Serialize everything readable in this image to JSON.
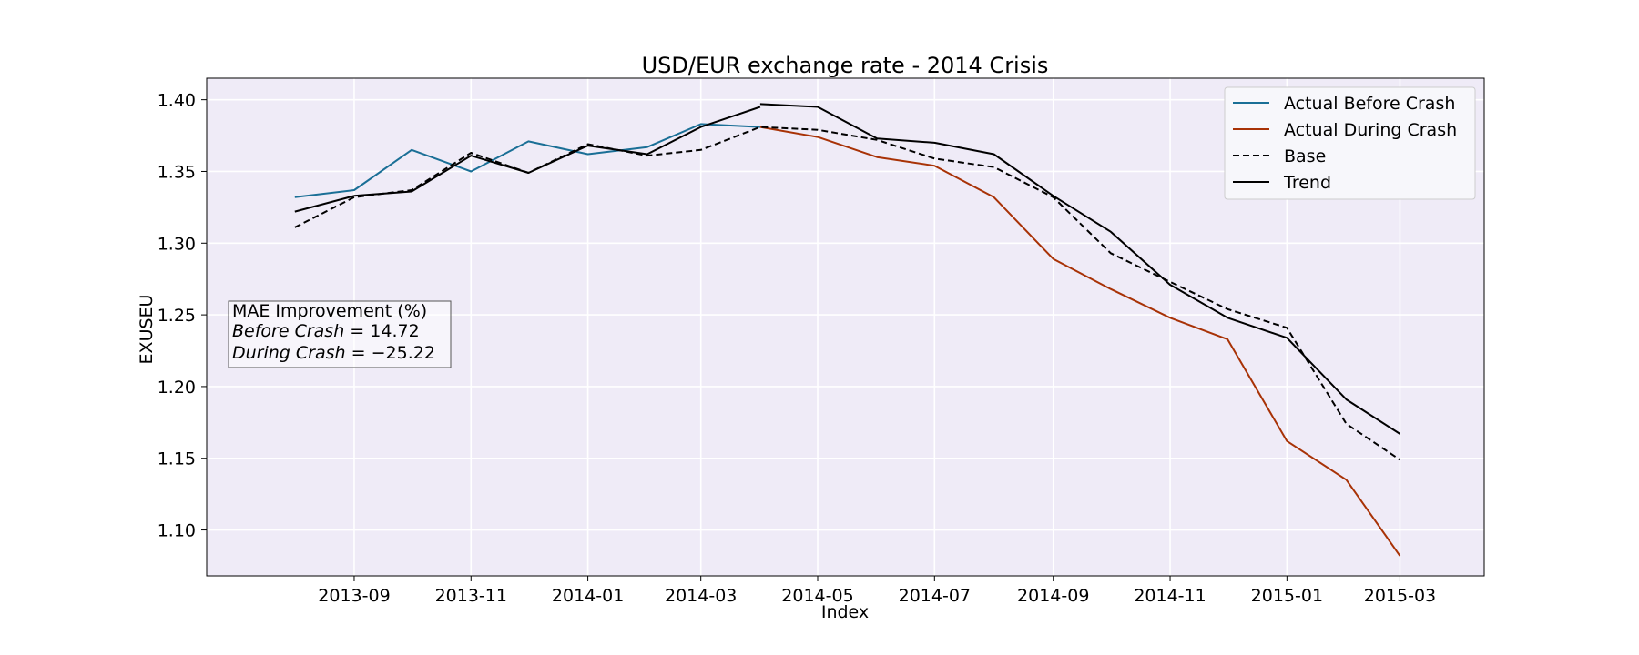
{
  "chart_data": {
    "type": "line",
    "title": "USD/EUR exchange rate - 2014 Crisis",
    "xlabel": "Index",
    "ylabel": "EXUSEU",
    "xlim": [
      "2013-06-16",
      "2015-04-14"
    ],
    "ylim": [
      1.068,
      1.415
    ],
    "x_ticks": [
      "2013-09",
      "2013-11",
      "2014-01",
      "2014-03",
      "2014-05",
      "2014-07",
      "2014-09",
      "2014-11",
      "2015-01",
      "2015-03"
    ],
    "y_ticks": [
      "1.10",
      "1.15",
      "1.20",
      "1.25",
      "1.30",
      "1.35",
      "1.40"
    ],
    "grid": true,
    "legend_position": "top-right",
    "series": [
      {
        "name": "Actual Before Crash",
        "color": "#1a6f96",
        "style": "solid",
        "x": [
          "2013-08-01",
          "2013-09-01",
          "2013-10-01",
          "2013-11-01",
          "2013-12-01",
          "2014-01-01",
          "2014-02-01",
          "2014-03-01",
          "2014-04-01"
        ],
        "values": [
          1.332,
          1.337,
          1.365,
          1.35,
          1.371,
          1.362,
          1.367,
          1.383,
          1.381
        ]
      },
      {
        "name": "Actual During Crash",
        "color": "#a83206",
        "style": "solid",
        "x": [
          "2014-04-01",
          "2014-05-01",
          "2014-06-01",
          "2014-07-01",
          "2014-08-01",
          "2014-09-01",
          "2014-10-01",
          "2014-11-01",
          "2014-12-01",
          "2015-01-01",
          "2015-02-01",
          "2015-03-01"
        ],
        "values": [
          1.381,
          1.374,
          1.36,
          1.354,
          1.332,
          1.289,
          1.268,
          1.248,
          1.233,
          1.162,
          1.135,
          1.082
        ]
      },
      {
        "name": "Base",
        "color": "#000000",
        "style": "dashed",
        "x": [
          "2013-08-01",
          "2013-09-01",
          "2013-10-01",
          "2013-11-01",
          "2013-12-01",
          "2014-01-01",
          "2014-02-01",
          "2014-03-01",
          "2014-04-01",
          "2014-05-01",
          "2014-06-01",
          "2014-07-01",
          "2014-08-01",
          "2014-09-01",
          "2014-10-01",
          "2014-11-01",
          "2014-12-01",
          "2015-01-01",
          "2015-02-01",
          "2015-03-01"
        ],
        "values": [
          1.311,
          1.332,
          1.337,
          1.363,
          1.349,
          1.369,
          1.361,
          1.365,
          1.381,
          1.379,
          1.372,
          1.359,
          1.353,
          1.332,
          1.293,
          1.273,
          1.254,
          1.241,
          1.174,
          1.149
        ]
      },
      {
        "name": "Trend",
        "color": "#000000",
        "style": "solid",
        "segments": [
          {
            "x": [
              "2013-08-01",
              "2013-09-01",
              "2013-10-01",
              "2013-11-01",
              "2013-12-01",
              "2014-01-01",
              "2014-02-01",
              "2014-03-01",
              "2014-04-01"
            ],
            "values": [
              1.322,
              1.333,
              1.336,
              1.361,
              1.349,
              1.368,
              1.362,
              1.381,
              1.395
            ]
          },
          {
            "x": [
              "2014-04-01",
              "2014-05-01",
              "2014-06-01",
              "2014-07-01",
              "2014-08-01",
              "2014-09-01",
              "2014-10-01",
              "2014-11-01",
              "2014-12-01",
              "2015-01-01",
              "2015-02-01",
              "2015-03-01"
            ],
            "values": [
              1.397,
              1.395,
              1.373,
              1.37,
              1.362,
              1.333,
              1.308,
              1.271,
              1.248,
              1.234,
              1.191,
              1.167
            ]
          }
        ]
      }
    ],
    "annotation": {
      "heading": "MAE Improvement (%)",
      "before_label": "Before Crash",
      "before_value": "14.72",
      "during_label": "During Crash",
      "during_value": "−25.22"
    }
  }
}
